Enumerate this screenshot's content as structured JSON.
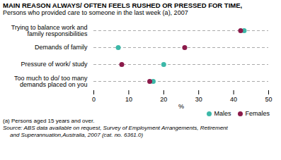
{
  "chart_data": {
    "type": "dot",
    "title": "MAIN REASON ALWAYS/ OFTEN FEELS RUSHED OR PRESSED FOR TIME,",
    "subtitle": "Persons who provided care to someone in the last week (a), 2007",
    "categories": [
      "Trying to balance work and\nfamily responsibilities",
      "Demands of family",
      "Pressure of work/ study",
      "Too much to do/ too many\ndemands placed on you"
    ],
    "series": [
      {
        "name": "Males",
        "color": "#3cb8a8",
        "values": [
          43,
          7,
          20,
          17
        ]
      },
      {
        "name": "Females",
        "color": "#8b1a4a",
        "values": [
          42,
          26,
          8,
          16
        ]
      }
    ],
    "xlabel": "%",
    "xlim": [
      0,
      50
    ],
    "xticks": [
      0,
      10,
      20,
      30,
      40,
      50
    ],
    "grid": false,
    "legend": "lower right",
    "notes": [
      "(a) Persons aged 15 years and over.",
      "Source: ABS data available on request, Survey of Employment Arrangements, Retirement",
      "and Superannuation,Australia, 2007 (cat. no. 6361.0)"
    ]
  }
}
